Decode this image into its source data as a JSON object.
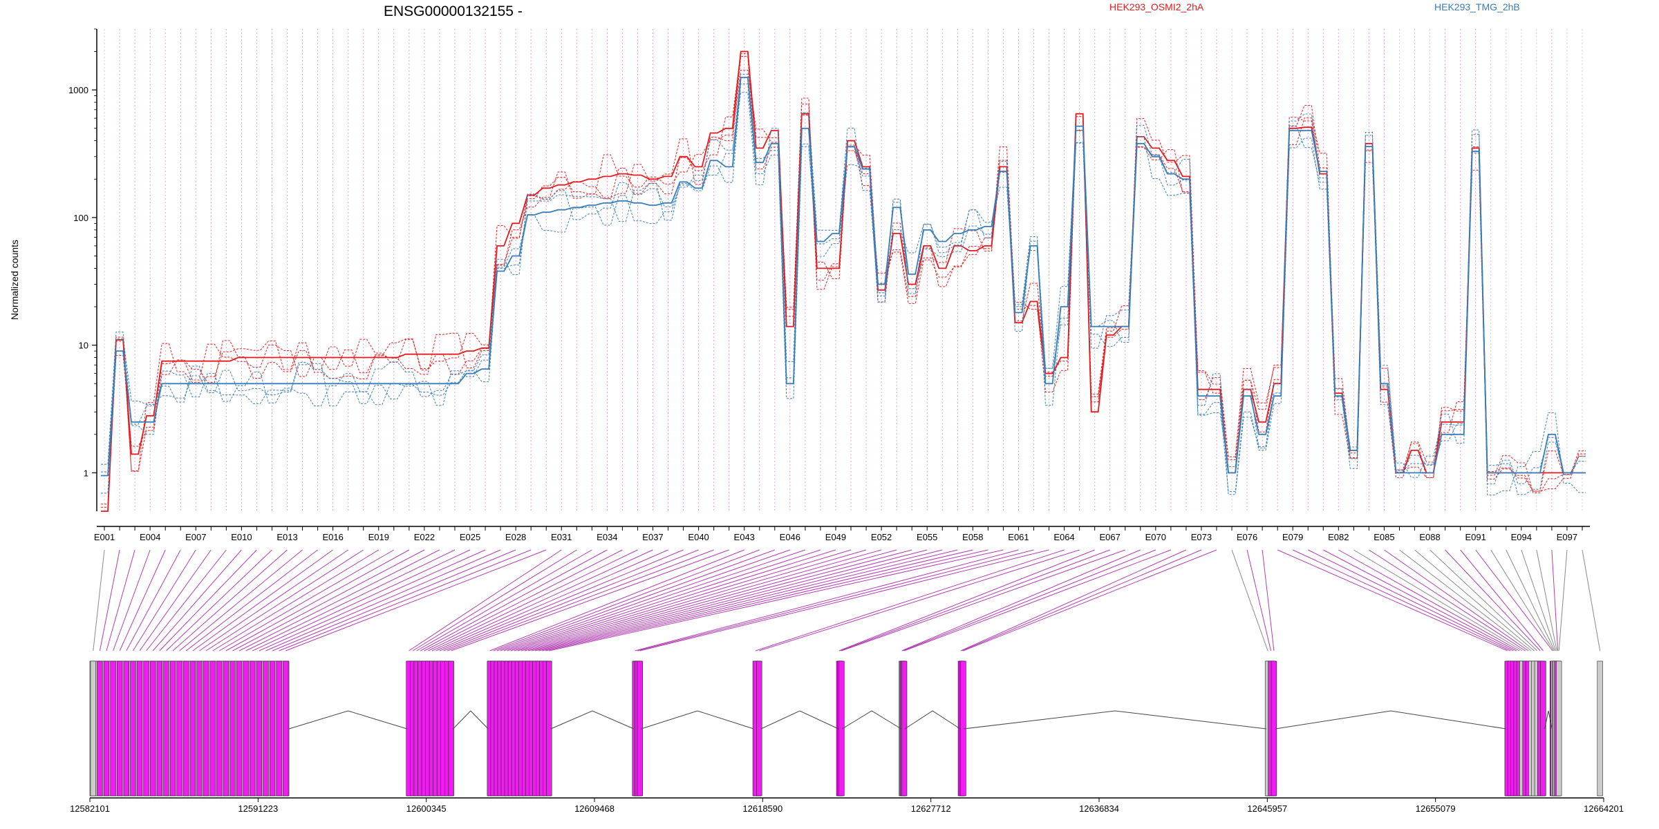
{
  "chart_data": {
    "type": "line",
    "title": "ENSG00000132155 -",
    "ylabel": "Normalized counts",
    "y_scale": "log",
    "ylim": [
      0.5,
      3000
    ],
    "y_ticks": [
      1,
      10,
      100,
      1000
    ],
    "y_tick_labels": [
      "1",
      "10",
      "100",
      "1000"
    ],
    "exon_tick_labels": [
      "E001",
      "E004",
      "E007",
      "E010",
      "E013",
      "E016",
      "E019",
      "E022",
      "E025",
      "E028",
      "E031",
      "E034",
      "E037",
      "E040",
      "E043",
      "E046",
      "E049",
      "E052",
      "E055",
      "E058",
      "E061",
      "E064",
      "E067",
      "E070",
      "E073",
      "E076",
      "E079",
      "E082",
      "E085",
      "E088",
      "E091",
      "E094",
      "E097"
    ],
    "n_exons": 98,
    "legend": [
      {
        "name": "HEK293_OSMI2_2hA",
        "color": "#e41a1c"
      },
      {
        "name": "HEK293_TMG_2hB",
        "color": "#377eb8"
      }
    ],
    "condition_means": [
      {
        "condition": "HEK293_OSMI2_2hA",
        "color": "#e41a1c",
        "values": [
          0.5,
          11,
          1.4,
          2.8,
          7.5,
          7.5,
          7.5,
          7.5,
          7.5,
          8,
          8,
          8,
          8,
          8,
          8,
          8,
          8,
          8,
          8,
          8,
          8.5,
          8.5,
          8.5,
          8.5,
          9,
          9.5,
          60,
          90,
          150,
          170,
          180,
          190,
          200,
          210,
          220,
          215,
          200,
          210,
          300,
          250,
          460,
          500,
          2000,
          350,
          480,
          14,
          650,
          40,
          40,
          400,
          250,
          27,
          75,
          30,
          60,
          40,
          60,
          55,
          60,
          250,
          15,
          22,
          6,
          8,
          650,
          3,
          12,
          14,
          430,
          350,
          280,
          210,
          4.5,
          4.5,
          1,
          4.5,
          2.5,
          5,
          500,
          510,
          220,
          4.2,
          1.5,
          380,
          4.5,
          1,
          1.5,
          1,
          2.5,
          2.5,
          350,
          1,
          1,
          1,
          1,
          1,
          1,
          1
        ]
      },
      {
        "condition": "HEK293_TMG_2hB",
        "color": "#377eb8",
        "values": [
          0.95,
          9,
          2.5,
          2.5,
          5,
          5,
          5,
          5,
          5,
          5,
          5,
          5,
          5,
          5,
          5,
          5,
          5,
          5,
          5,
          5,
          5,
          5,
          5,
          5,
          6,
          6.5,
          38,
          50,
          105,
          110,
          115,
          120,
          125,
          130,
          135,
          130,
          125,
          130,
          190,
          170,
          280,
          250,
          1250,
          270,
          380,
          5,
          500,
          65,
          75,
          360,
          240,
          30,
          120,
          36,
          80,
          65,
          75,
          80,
          85,
          230,
          18,
          60,
          5,
          20,
          520,
          14,
          14,
          14,
          380,
          300,
          220,
          200,
          4,
          4,
          1,
          4,
          2,
          4,
          480,
          480,
          230,
          4,
          1.5,
          360,
          5,
          1,
          1,
          1,
          2,
          2,
          330,
          1,
          1,
          1,
          1,
          2,
          1,
          1
        ]
      }
    ],
    "genomic_axis": {
      "tick_labels": [
        "12582101",
        "12591223",
        "12600345",
        "12609468",
        "12618590",
        "12627712",
        "12636834",
        "12645957",
        "12655079",
        "12664201"
      ],
      "range": [
        12582101,
        12664201
      ]
    }
  },
  "colors": {
    "condition_a": "#e41a1c",
    "condition_b": "#377eb8",
    "exon_tested": "#f01df0",
    "exon_untested": "#cccccc",
    "link_tested": "#b03db0",
    "link_untested": "#888888",
    "grid_tested": "#e8a0c8",
    "grid_untested": "#d0d0d0"
  }
}
